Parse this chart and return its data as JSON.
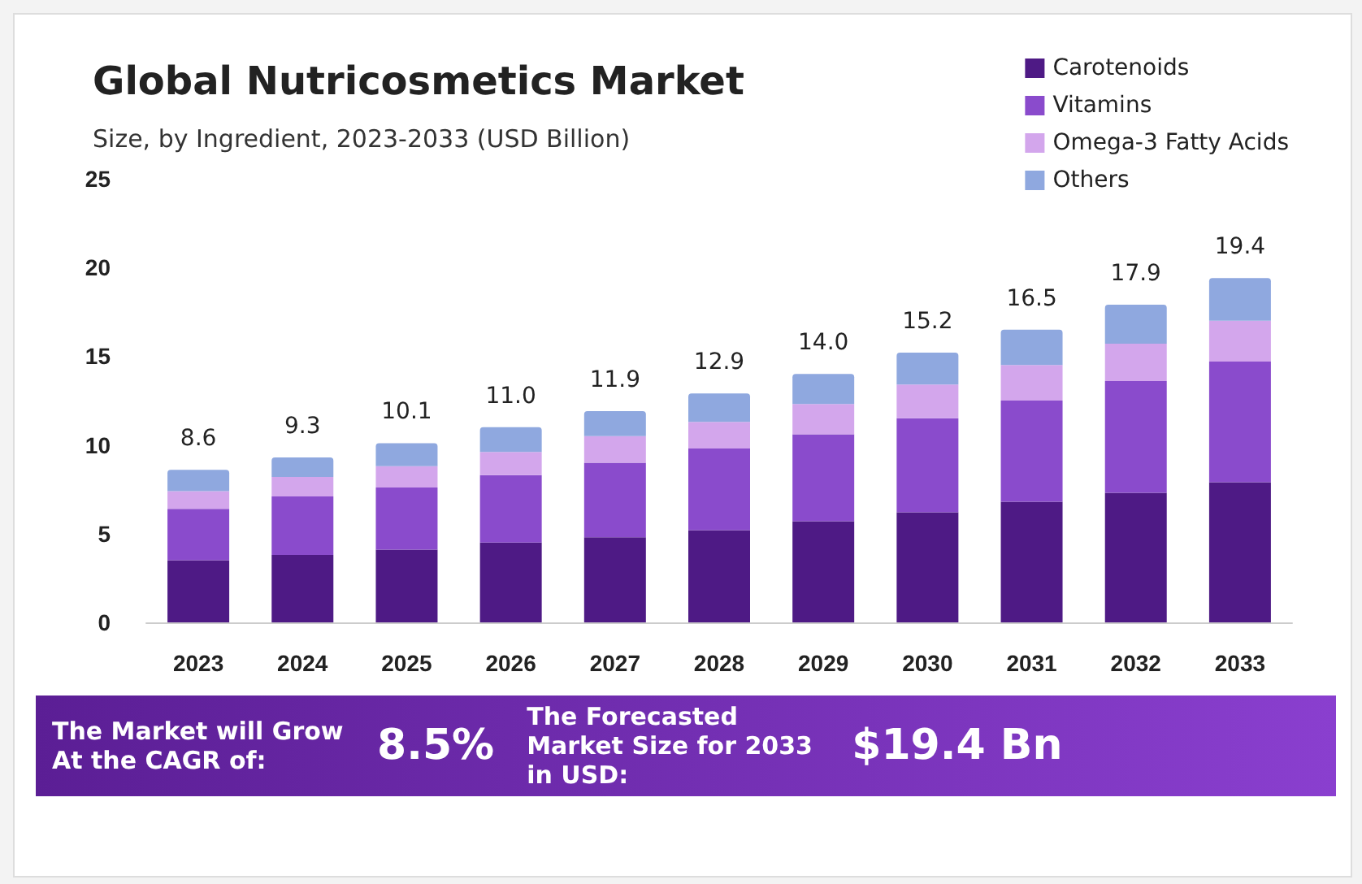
{
  "chart_data": {
    "type": "bar",
    "title": "Global Nutricosmetics Market",
    "subtitle": "Size, by Ingredient, 2023-2033 (USD Billion)",
    "categories": [
      "2023",
      "2024",
      "2025",
      "2026",
      "2027",
      "2028",
      "2029",
      "2030",
      "2031",
      "2032",
      "2033"
    ],
    "stacked": true,
    "series": [
      {
        "name": "Carotenoids",
        "color": "#4e1a85",
        "values": [
          3.5,
          3.8,
          4.1,
          4.5,
          4.8,
          5.2,
          5.7,
          6.2,
          6.8,
          7.3,
          7.9
        ]
      },
      {
        "name": "Vitamins",
        "color": "#8a4bcc",
        "values": [
          2.9,
          3.3,
          3.5,
          3.8,
          4.2,
          4.6,
          4.9,
          5.3,
          5.7,
          6.3,
          6.8
        ]
      },
      {
        "name": "Omega-3 Fatty Acids",
        "color": "#d3a6ec",
        "values": [
          1.0,
          1.1,
          1.2,
          1.3,
          1.5,
          1.5,
          1.7,
          1.9,
          2.0,
          2.1,
          2.3
        ]
      },
      {
        "name": "Others",
        "color": "#8fa8df",
        "values": [
          1.2,
          1.1,
          1.3,
          1.4,
          1.4,
          1.6,
          1.7,
          1.8,
          2.0,
          2.2,
          2.4
        ]
      }
    ],
    "totals": [
      "8.6",
      "9.3",
      "10.1",
      "11.0",
      "11.9",
      "12.9",
      "14.0",
      "15.2",
      "16.5",
      "17.9",
      "19.4"
    ],
    "ylim": [
      0,
      25
    ],
    "yticks": [
      0,
      5,
      10,
      15,
      20,
      25
    ],
    "grid": false,
    "legend": "top right",
    "annotations": [
      "The Market will Grow At the CAGR of:",
      "8.5%",
      "The Forecasted Market Size for 2033 in USD:",
      "$19.4 Bn"
    ]
  }
}
